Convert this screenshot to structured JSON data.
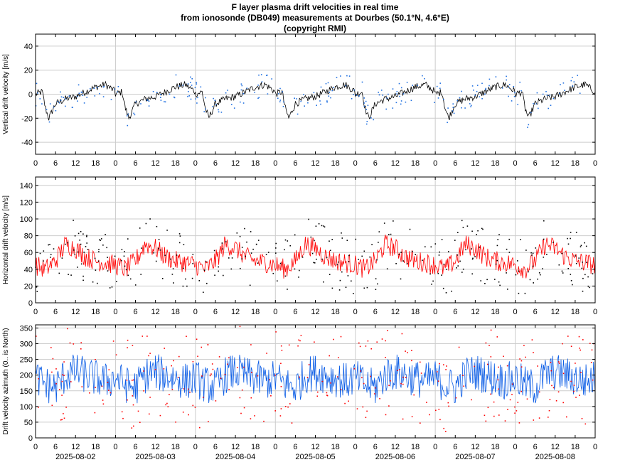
{
  "title": {
    "line1": "F layer plasma drift velocities in real time",
    "line2": "from ionosonde (DB049) measurements at Dourbes (50.1°N, 4.6°E)",
    "line3": "(copyright RMI)"
  },
  "colors": {
    "vertical_line": "#000000",
    "vertical_points": "#1f6fe0",
    "horizontal_line": "#ff0000",
    "horizontal_points": "#000000",
    "azimuth_line": "#0a5ce6",
    "azimuth_points": "#ff0000",
    "grid": "#cccccc"
  },
  "chart_data": [
    {
      "type": "line",
      "ylabel": "Vertical drift velocity [m/s]",
      "ylim": [
        -50,
        50
      ],
      "yticks": [
        -40,
        -20,
        0,
        20,
        40
      ],
      "xticks": [
        "0",
        "6",
        "12",
        "18",
        "0",
        "6",
        "12",
        "18",
        "0",
        "6",
        "12",
        "18",
        "0",
        "6",
        "12",
        "18",
        "0",
        "6",
        "12",
        "18",
        "0",
        "6",
        "12",
        "18",
        "0",
        "6",
        "12",
        "18",
        "0"
      ],
      "grid": true,
      "series": [
        {
          "kind": "line",
          "daily_profile_hours": [
            0,
            2,
            3,
            4,
            6,
            9,
            12,
            15,
            18,
            21,
            24
          ],
          "daily_profile_values": [
            0,
            2,
            -12,
            -20,
            -8,
            -4,
            -2,
            2,
            6,
            8,
            2
          ]
        },
        {
          "kind": "points"
        }
      ]
    },
    {
      "type": "line",
      "ylabel": "Horizontal drift velocity [m/s]",
      "ylim": [
        0,
        150
      ],
      "yticks": [
        0,
        20,
        40,
        60,
        80,
        100,
        120,
        140
      ],
      "xticks": [
        "0",
        "6",
        "12",
        "18",
        "0",
        "6",
        "12",
        "18",
        "0",
        "6",
        "12",
        "18",
        "0",
        "6",
        "12",
        "18",
        "0",
        "6",
        "12",
        "18",
        "0",
        "6",
        "12",
        "18",
        "0",
        "6",
        "12",
        "18",
        "0"
      ],
      "grid": true,
      "series": [
        {
          "kind": "line",
          "daily_profile_hours": [
            0,
            3,
            6,
            9,
            12,
            15,
            18,
            21,
            24
          ],
          "daily_profile_values": [
            45,
            40,
            50,
            70,
            65,
            55,
            50,
            48,
            45
          ]
        },
        {
          "kind": "points"
        }
      ]
    },
    {
      "type": "line",
      "ylabel": "Drift velocity azimuth (0.. is North)",
      "ylim": [
        0,
        360
      ],
      "yticks": [
        0,
        50,
        100,
        150,
        200,
        250,
        300,
        350
      ],
      "xticks": [
        "0",
        "6",
        "12",
        "18",
        "0",
        "6",
        "12",
        "18",
        "0",
        "6",
        "12",
        "18",
        "0",
        "6",
        "12",
        "18",
        "0",
        "6",
        "12",
        "18",
        "0",
        "6",
        "12",
        "18",
        "0",
        "6",
        "12",
        "18",
        "0"
      ],
      "dates": [
        "2025-08-02",
        "2025-08-03",
        "2025-08-04",
        "2025-08-05",
        "2025-08-06",
        "2025-08-07",
        "2025-08-08"
      ],
      "grid": true,
      "series": [
        {
          "kind": "line",
          "daily_profile_hours": [
            0,
            3,
            6,
            9,
            12,
            15,
            18,
            21,
            24
          ],
          "daily_profile_values": [
            190,
            170,
            160,
            200,
            210,
            200,
            190,
            180,
            190
          ]
        },
        {
          "kind": "points"
        }
      ]
    }
  ]
}
